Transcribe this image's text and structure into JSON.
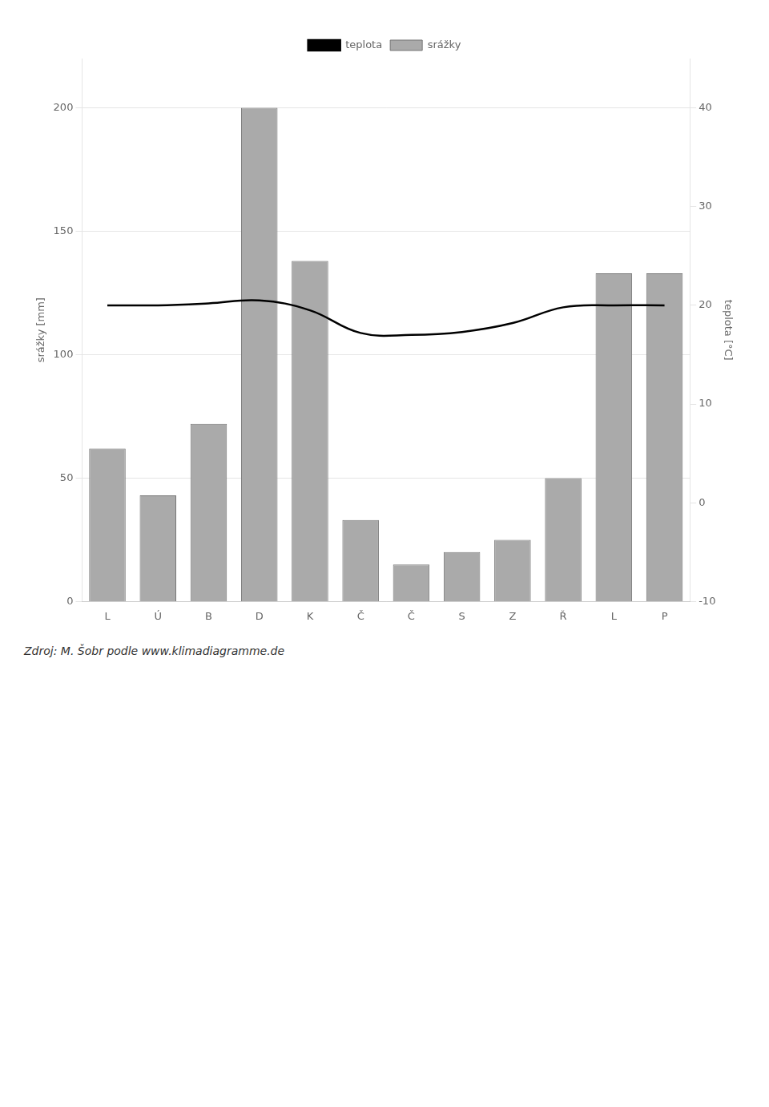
{
  "chart_data": {
    "type": "bar",
    "categories": [
      "L",
      "Ú",
      "B",
      "D",
      "K",
      "Č",
      "Č",
      "S",
      "Z",
      "Ř",
      "L",
      "P"
    ],
    "series": [
      {
        "name": "srážky",
        "type": "bar",
        "color": "#aaaaaa",
        "values": [
          62,
          43,
          72,
          200,
          138,
          33,
          15,
          20,
          25,
          50,
          133,
          133
        ]
      },
      {
        "name": "teplota",
        "type": "line",
        "color": "#000000",
        "axis": "y2",
        "values": [
          20.0,
          20.0,
          20.2,
          20.5,
          19.5,
          17.2,
          17.0,
          17.3,
          18.2,
          19.8,
          20.0,
          20.0
        ]
      }
    ],
    "ylabel": "srážky [mm]",
    "y2label": "teplota [°C]",
    "ylim": [
      0,
      220
    ],
    "yticks": [
      0,
      50,
      100,
      150,
      200
    ],
    "y2lim": [
      -10,
      45
    ],
    "y2ticks": [
      -10,
      0,
      10,
      20,
      30,
      40
    ],
    "grid": true,
    "legend": "top",
    "annotations": [
      "Zdroj: M. Šobr podle www.klimadiagramme.de"
    ]
  }
}
